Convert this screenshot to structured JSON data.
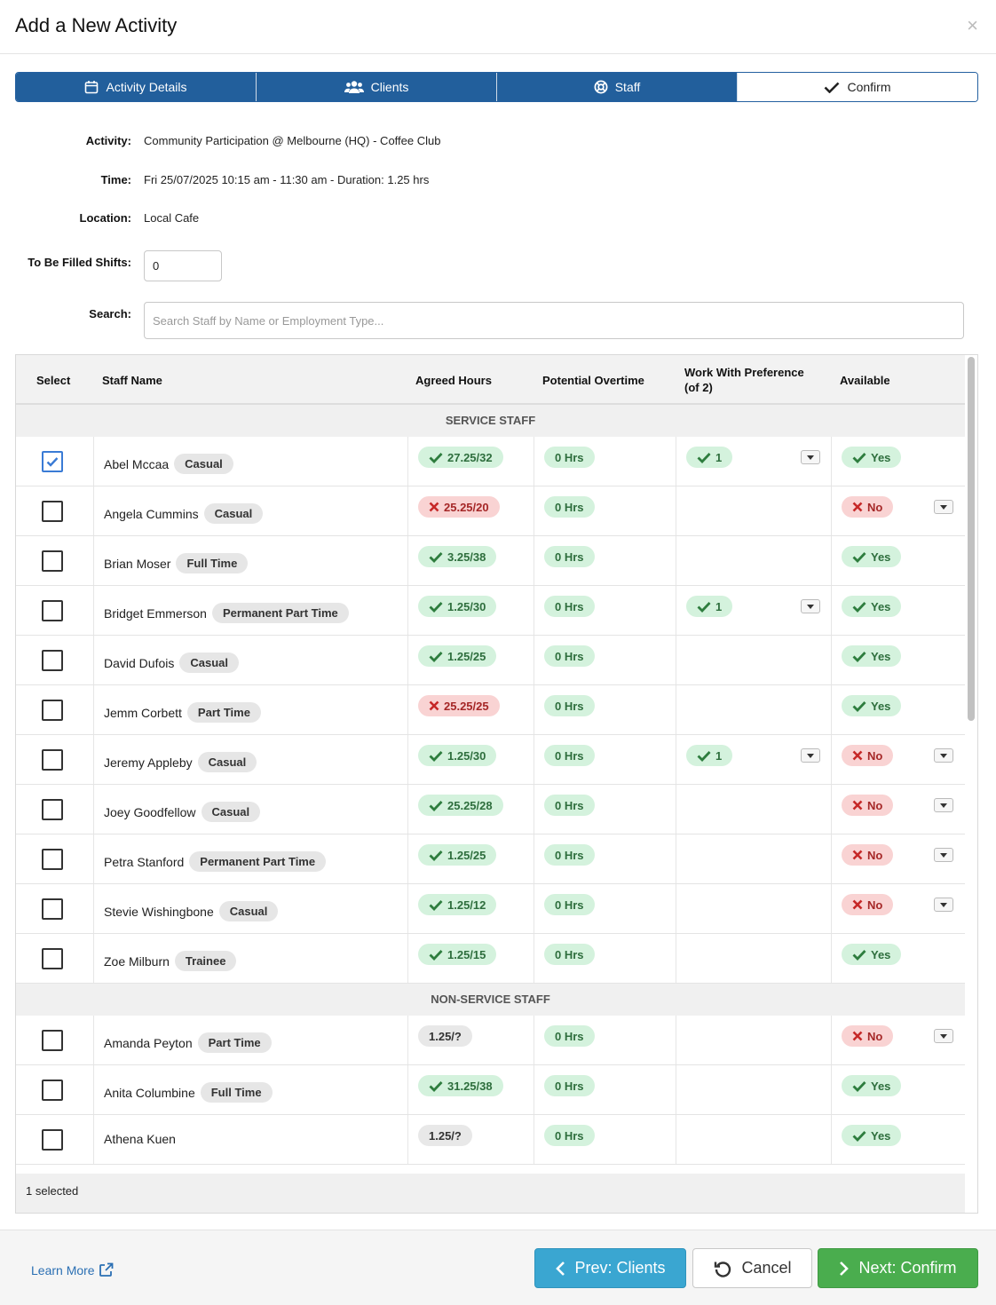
{
  "modal": {
    "title": "Add a New Activity",
    "close": "×"
  },
  "steps": [
    {
      "label": "Activity Details",
      "icon": "calendar-icon",
      "active": true
    },
    {
      "label": "Clients",
      "icon": "users-icon",
      "active": true
    },
    {
      "label": "Staff",
      "icon": "lifebuoy-icon",
      "active": true
    },
    {
      "label": "Confirm",
      "icon": "check-icon",
      "active": false
    }
  ],
  "details": {
    "activity_label": "Activity:",
    "activity": "Community Participation @ Melbourne (HQ) - Coffee Club",
    "time_label": "Time:",
    "time": "Fri 25/07/2025 10:15 am - 11:30 am - Duration: 1.25 hrs",
    "location_label": "Location:",
    "location": "Local Cafe",
    "shifts_label": "To Be Filled Shifts:",
    "shifts_value": "0",
    "search_label": "Search:",
    "search_placeholder": "Search Staff by Name or Employment Type..."
  },
  "table": {
    "headers": {
      "select": "Select",
      "staff_name": "Staff Name",
      "agreed_hours": "Agreed Hours",
      "potential_overtime": "Potential Overtime",
      "work_with_pref_1": "Work With Preference",
      "work_with_pref_2": "(of 2)",
      "available": "Available"
    },
    "groups": [
      {
        "title": "SERVICE STAFF",
        "rows": [
          {
            "name": "Abel Mccaa",
            "type": "Casual",
            "checked": true,
            "hours": "27.25/32",
            "hours_ok": true,
            "overtime": "0 Hrs",
            "pref": "1",
            "available": "Yes",
            "available_ok": true
          },
          {
            "name": "Angela Cummins",
            "type": "Casual",
            "checked": false,
            "hours": "25.25/20",
            "hours_ok": false,
            "overtime": "0 Hrs",
            "pref": "",
            "available": "No",
            "available_ok": false
          },
          {
            "name": "Brian Moser",
            "type": "Full Time",
            "checked": false,
            "hours": "3.25/38",
            "hours_ok": true,
            "overtime": "0 Hrs",
            "pref": "",
            "available": "Yes",
            "available_ok": true
          },
          {
            "name": "Bridget Emmerson",
            "type": "Permanent Part Time",
            "checked": false,
            "hours": "1.25/30",
            "hours_ok": true,
            "overtime": "0 Hrs",
            "pref": "1",
            "available": "Yes",
            "available_ok": true
          },
          {
            "name": "David Dufois",
            "type": "Casual",
            "checked": false,
            "hours": "1.25/25",
            "hours_ok": true,
            "overtime": "0 Hrs",
            "pref": "",
            "available": "Yes",
            "available_ok": true
          },
          {
            "name": "Jemm Corbett",
            "type": "Part Time",
            "checked": false,
            "hours": "25.25/25",
            "hours_ok": false,
            "overtime": "0 Hrs",
            "pref": "",
            "available": "Yes",
            "available_ok": true
          },
          {
            "name": "Jeremy Appleby",
            "type": "Casual",
            "checked": false,
            "hours": "1.25/30",
            "hours_ok": true,
            "overtime": "0 Hrs",
            "pref": "1",
            "available": "No",
            "available_ok": false
          },
          {
            "name": "Joey Goodfellow",
            "type": "Casual",
            "checked": false,
            "hours": "25.25/28",
            "hours_ok": true,
            "overtime": "0 Hrs",
            "pref": "",
            "available": "No",
            "available_ok": false
          },
          {
            "name": "Petra Stanford",
            "type": "Permanent Part Time",
            "checked": false,
            "hours": "1.25/25",
            "hours_ok": true,
            "overtime": "0 Hrs",
            "pref": "",
            "available": "No",
            "available_ok": false
          },
          {
            "name": "Stevie Wishingbone",
            "type": "Casual",
            "checked": false,
            "hours": "1.25/12",
            "hours_ok": true,
            "overtime": "0 Hrs",
            "pref": "",
            "available": "No",
            "available_ok": false
          },
          {
            "name": "Zoe Milburn",
            "type": "Trainee",
            "checked": false,
            "hours": "1.25/15",
            "hours_ok": true,
            "overtime": "0 Hrs",
            "pref": "",
            "available": "Yes",
            "available_ok": true
          }
        ]
      },
      {
        "title": "NON-SERVICE STAFF",
        "rows": [
          {
            "name": "Amanda Peyton",
            "type": "Part Time",
            "checked": false,
            "hours": "1.25/?",
            "hours_ok": null,
            "overtime": "0 Hrs",
            "pref": "",
            "available": "No",
            "available_ok": false
          },
          {
            "name": "Anita Columbine",
            "type": "Full Time",
            "checked": false,
            "hours": "31.25/38",
            "hours_ok": true,
            "overtime": "0 Hrs",
            "pref": "",
            "available": "Yes",
            "available_ok": true
          },
          {
            "name": "Athena Kuen",
            "type": "",
            "checked": false,
            "hours": "1.25/?",
            "hours_ok": null,
            "overtime": "0 Hrs",
            "pref": "",
            "available": "Yes",
            "available_ok": true
          }
        ]
      }
    ],
    "selected_count": "1 selected"
  },
  "footer": {
    "learn_more": "Learn More",
    "prev_button": "Prev: Clients",
    "cancel_button": "Cancel",
    "next_button": "Next: Confirm"
  },
  "colors": {
    "step_blue": "#225f9c",
    "ok_bg": "#d4f2dd",
    "ok_text": "#2e6e3d",
    "bad_bg": "#f9d3d3",
    "bad_text": "#a52727",
    "prev_button": "#3aa6d1",
    "next_button": "#4aad4e"
  }
}
